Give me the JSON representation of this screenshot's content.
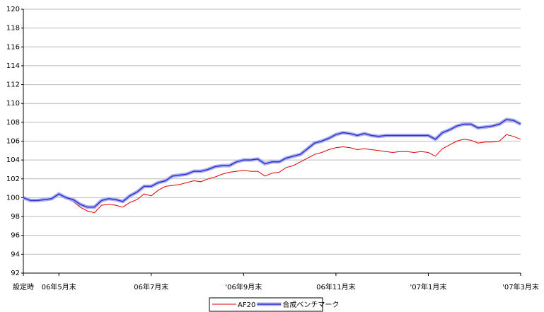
{
  "chart_data": {
    "type": "line",
    "categories": [
      "設定時",
      null,
      null,
      null,
      null,
      "06年5月末",
      null,
      null,
      null,
      null,
      null,
      null,
      null,
      null,
      null,
      null,
      null,
      null,
      "06年7月末",
      null,
      null,
      null,
      null,
      null,
      null,
      null,
      null,
      null,
      null,
      null,
      null,
      "'06年9月末",
      null,
      null,
      null,
      null,
      null,
      null,
      null,
      null,
      null,
      null,
      null,
      null,
      "06年11月末",
      null,
      null,
      null,
      null,
      null,
      null,
      null,
      null,
      null,
      null,
      null,
      null,
      "'07年1月末",
      null,
      null,
      null,
      null,
      null,
      null,
      null,
      null,
      null,
      null,
      null,
      null,
      "'07年3月末"
    ],
    "series": [
      {
        "name": "AF20",
        "color": "#e00000",
        "values": [
          100,
          99.8,
          99.7,
          99.8,
          99.9,
          100.3,
          99.9,
          99.6,
          99.0,
          98.6,
          98.4,
          99.2,
          99.3,
          99.2,
          99.0,
          99.5,
          99.8,
          100.4,
          100.2,
          100.8,
          101.2,
          101.3,
          101.4,
          101.6,
          101.8,
          101.7,
          102.0,
          102.2,
          102.5,
          102.7,
          102.8,
          102.9,
          102.8,
          102.8,
          102.3,
          102.6,
          102.7,
          103.2,
          103.4,
          103.8,
          104.2,
          104.6,
          104.8,
          105.1,
          105.3,
          105.4,
          105.3,
          105.1,
          105.2,
          105.1,
          105.0,
          104.9,
          104.8,
          104.9,
          104.9,
          104.8,
          104.9,
          104.8,
          104.4,
          105.2,
          105.6,
          106.0,
          106.2,
          106.1,
          105.8,
          105.9,
          105.9,
          106.0,
          106.7,
          106.5,
          106.2
        ]
      },
      {
        "name": "合成ベンチマーク",
        "color": "#3333cc",
        "values": [
          100,
          99.7,
          99.7,
          99.8,
          99.9,
          100.4,
          100.0,
          99.8,
          99.3,
          99.0,
          99.0,
          99.7,
          99.9,
          99.8,
          99.6,
          100.2,
          100.6,
          101.2,
          101.2,
          101.6,
          101.8,
          102.3,
          102.4,
          102.5,
          102.8,
          102.8,
          103.0,
          103.3,
          103.4,
          103.4,
          103.8,
          104.0,
          104.0,
          104.1,
          103.6,
          103.8,
          103.8,
          104.2,
          104.4,
          104.6,
          105.2,
          105.8,
          106.0,
          106.3,
          106.7,
          106.9,
          106.8,
          106.6,
          106.8,
          106.6,
          106.5,
          106.6,
          106.6,
          106.6,
          106.6,
          106.6,
          106.6,
          106.6,
          106.2,
          106.9,
          107.2,
          107.6,
          107.8,
          107.8,
          107.4,
          107.5,
          107.6,
          107.8,
          108.3,
          108.2,
          107.8
        ]
      }
    ],
    "ylim": [
      92,
      120
    ],
    "yticks": [
      92,
      94,
      96,
      98,
      100,
      102,
      104,
      106,
      108,
      110,
      112,
      114,
      116,
      118,
      120
    ],
    "grid": true
  }
}
